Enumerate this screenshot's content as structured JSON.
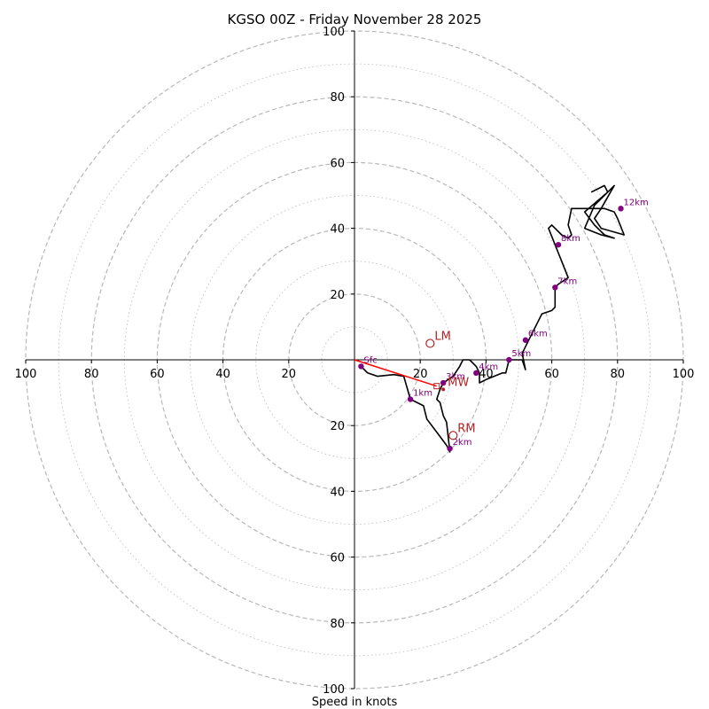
{
  "chart_data": {
    "type": "hodograph",
    "title": "KGSO 00Z - Friday November 28 2025",
    "xlabel": "Speed in knots",
    "units": "knots",
    "max_speed": 100,
    "ring_interval_major": 20,
    "ring_interval_minor": 10,
    "x_tick_labels": [
      "100",
      "80",
      "60",
      "40",
      "20",
      "20",
      "40",
      "60",
      "80",
      "100"
    ],
    "y_tick_labels": [
      "100",
      "80",
      "60",
      "40",
      "20",
      "20",
      "40",
      "60",
      "80",
      "100"
    ],
    "wind_profile": {
      "name": "hodograph trace",
      "color": "#000000",
      "points": [
        [
          2,
          -2
        ],
        [
          4,
          -4
        ],
        [
          7,
          -5
        ],
        [
          12,
          -4.5
        ],
        [
          15,
          -5
        ],
        [
          17,
          -12
        ],
        [
          21,
          -14
        ],
        [
          22,
          -18
        ],
        [
          25,
          -22
        ],
        [
          28,
          -26
        ],
        [
          29,
          -28
        ],
        [
          28,
          -19
        ],
        [
          27,
          -17
        ],
        [
          26,
          -13
        ],
        [
          25,
          -12
        ],
        [
          26,
          -9
        ],
        [
          27,
          -7
        ],
        [
          30,
          -5
        ],
        [
          32,
          -2
        ],
        [
          33,
          0
        ],
        [
          35,
          0
        ],
        [
          37,
          -2
        ],
        [
          38,
          -4
        ],
        [
          38,
          -7
        ],
        [
          40,
          -6
        ],
        [
          45,
          -4
        ],
        [
          46,
          -4
        ],
        [
          47,
          0
        ],
        [
          51,
          0
        ],
        [
          52,
          -3
        ],
        [
          51,
          2
        ],
        [
          52,
          4
        ],
        [
          53,
          6
        ],
        [
          57,
          14
        ],
        [
          60,
          15
        ],
        [
          61,
          16
        ],
        [
          61,
          22
        ],
        [
          62,
          23
        ],
        [
          65,
          25
        ],
        [
          61,
          35
        ],
        [
          59,
          40
        ],
        [
          60,
          41
        ],
        [
          63,
          38
        ],
        [
          65,
          37
        ],
        [
          66,
          38
        ],
        [
          65,
          41
        ],
        [
          66,
          46
        ],
        [
          76,
          46
        ],
        [
          79,
          45
        ],
        [
          80,
          43
        ],
        [
          82,
          38
        ],
        [
          75,
          40
        ],
        [
          73,
          43
        ],
        [
          75,
          46
        ],
        [
          79,
          53
        ],
        [
          77,
          51
        ],
        [
          73,
          47
        ],
        [
          70,
          40
        ],
        [
          75,
          38
        ],
        [
          79,
          37
        ],
        [
          76,
          38
        ],
        [
          73,
          41
        ],
        [
          70,
          45
        ],
        [
          77,
          51
        ],
        [
          76,
          53
        ],
        [
          74,
          52
        ],
        [
          72,
          51
        ]
      ]
    },
    "height_markers": [
      {
        "label": "Sfc",
        "x": 2,
        "y": -2
      },
      {
        "label": "1km",
        "x": 17,
        "y": -12
      },
      {
        "label": "2km",
        "x": 29,
        "y": -27
      },
      {
        "label": "3km",
        "x": 27,
        "y": -7
      },
      {
        "label": "4km",
        "x": 37,
        "y": -4
      },
      {
        "label": "5km",
        "x": 47,
        "y": 0
      },
      {
        "label": "6km",
        "x": 52,
        "y": 6
      },
      {
        "label": "7km",
        "x": 61,
        "y": 22
      },
      {
        "label": "8km",
        "x": 62,
        "y": 35
      },
      {
        "label": "12km",
        "x": 81,
        "y": 46
      }
    ],
    "storm_motions": [
      {
        "label": "LM",
        "x": 23,
        "y": 5
      },
      {
        "label": "RM",
        "x": 30,
        "y": -23
      },
      {
        "label": "MW",
        "x": 27,
        "y": -9
      }
    ],
    "shear_vector": {
      "from": [
        0,
        0
      ],
      "to": [
        25,
        -8
      ],
      "color": "#ff0000"
    },
    "colors": {
      "trace": "#000000",
      "height_marker": "#800080",
      "storm_motion": "#b22222",
      "shear_vector": "#ff0000",
      "grid": "#b8b8b8",
      "axis": "#000000"
    }
  }
}
